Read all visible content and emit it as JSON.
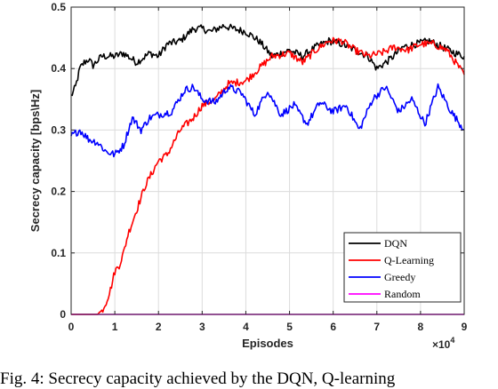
{
  "chart_data": {
    "type": "line",
    "xlabel": "Episodes",
    "ylabel": "Secrecy capacity [bps\\Hz]",
    "x_multiplier": "×10",
    "x_multiplier_exp": "4",
    "xlim": [
      0,
      9
    ],
    "ylim": [
      0,
      0.5
    ],
    "xticks": [
      0,
      1,
      2,
      3,
      4,
      5,
      6,
      7,
      8,
      9
    ],
    "yticks": [
      0,
      0.1,
      0.2,
      0.3,
      0.4,
      0.5
    ],
    "grid": true,
    "legend_position": "bottom-right",
    "series": [
      {
        "name": "DQN",
        "color": "#000000",
        "x": [
          0,
          0.1,
          0.2,
          0.3,
          0.4,
          0.5,
          0.7,
          1.0,
          1.2,
          1.5,
          1.8,
          2.0,
          2.2,
          2.5,
          2.8,
          3.0,
          3.2,
          3.5,
          3.7,
          4.0,
          4.3,
          4.6,
          5.0,
          5.3,
          5.6,
          5.9,
          6.2,
          6.5,
          6.8,
          7.0,
          7.3,
          7.6,
          7.9,
          8.2,
          8.5,
          8.8,
          9.0
        ],
        "y": [
          0.355,
          0.37,
          0.4,
          0.41,
          0.415,
          0.405,
          0.42,
          0.42,
          0.425,
          0.41,
          0.425,
          0.42,
          0.44,
          0.445,
          0.465,
          0.465,
          0.46,
          0.47,
          0.465,
          0.46,
          0.445,
          0.42,
          0.43,
          0.42,
          0.435,
          0.445,
          0.44,
          0.43,
          0.42,
          0.4,
          0.415,
          0.435,
          0.44,
          0.445,
          0.435,
          0.425,
          0.42
        ]
      },
      {
        "name": "Q-Learning",
        "color": "#ff0000",
        "x": [
          0,
          0.6,
          0.7,
          0.8,
          0.9,
          1.0,
          1.1,
          1.2,
          1.3,
          1.5,
          1.7,
          2.0,
          2.2,
          2.5,
          2.8,
          3.0,
          3.3,
          3.6,
          4.0,
          4.3,
          4.6,
          5.0,
          5.3,
          5.6,
          5.9,
          6.2,
          6.5,
          6.8,
          7.1,
          7.4,
          7.7,
          8.0,
          8.3,
          8.6,
          8.8,
          9.0
        ],
        "y": [
          0,
          0,
          0.005,
          0.02,
          0.04,
          0.07,
          0.08,
          0.1,
          0.13,
          0.17,
          0.21,
          0.25,
          0.26,
          0.3,
          0.32,
          0.34,
          0.35,
          0.375,
          0.38,
          0.4,
          0.42,
          0.425,
          0.41,
          0.43,
          0.445,
          0.445,
          0.43,
          0.42,
          0.425,
          0.435,
          0.43,
          0.44,
          0.44,
          0.43,
          0.41,
          0.39
        ]
      },
      {
        "name": "Greedy",
        "color": "#0000ff",
        "x": [
          0,
          0.2,
          0.4,
          0.6,
          0.8,
          1.0,
          1.2,
          1.4,
          1.6,
          1.8,
          2.0,
          2.3,
          2.6,
          2.8,
          3.0,
          3.3,
          3.6,
          3.9,
          4.2,
          4.5,
          4.8,
          5.1,
          5.4,
          5.7,
          6.0,
          6.3,
          6.6,
          6.9,
          7.2,
          7.5,
          7.8,
          8.1,
          8.4,
          8.7,
          9.0
        ],
        "y": [
          0.29,
          0.3,
          0.285,
          0.28,
          0.265,
          0.26,
          0.275,
          0.32,
          0.3,
          0.32,
          0.325,
          0.33,
          0.365,
          0.37,
          0.35,
          0.345,
          0.37,
          0.36,
          0.325,
          0.365,
          0.325,
          0.34,
          0.31,
          0.345,
          0.33,
          0.34,
          0.3,
          0.35,
          0.37,
          0.33,
          0.35,
          0.31,
          0.37,
          0.33,
          0.3
        ]
      },
      {
        "name": "Random",
        "color": "#ff00ff",
        "x": [
          0,
          9
        ],
        "y": [
          0,
          0
        ]
      }
    ]
  },
  "caption_text": "Fig. 4: Secrecy capacity achieved by the DQN, Q-learning"
}
